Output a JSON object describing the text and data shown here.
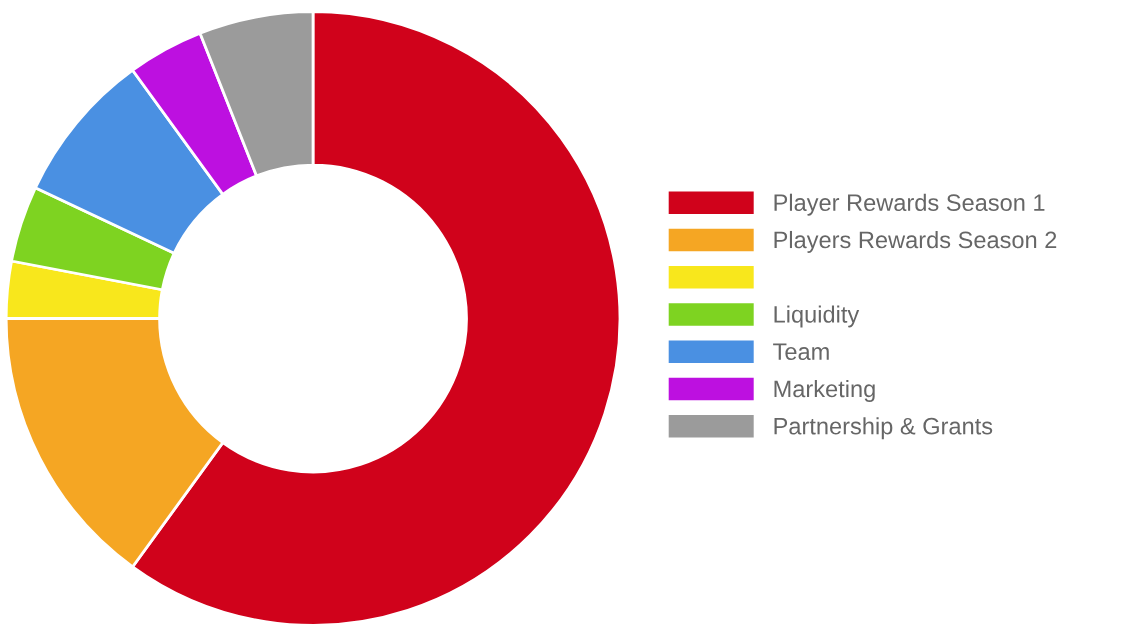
{
  "chart_data": {
    "type": "donut",
    "categories": [
      "Player Rewards Season 1",
      "Players Rewards Season 2",
      null,
      "Liquidity",
      "Team",
      "Marketing",
      "Partnership & Grants"
    ],
    "values": [
      60,
      15,
      3,
      4,
      8,
      4,
      6
    ],
    "colors": [
      "#d0021b",
      "#f5a623",
      "#f8e71c",
      "#7ed321",
      "#4a90e2",
      "#bd10e0",
      "#9b9b9b"
    ],
    "legend": "right"
  }
}
